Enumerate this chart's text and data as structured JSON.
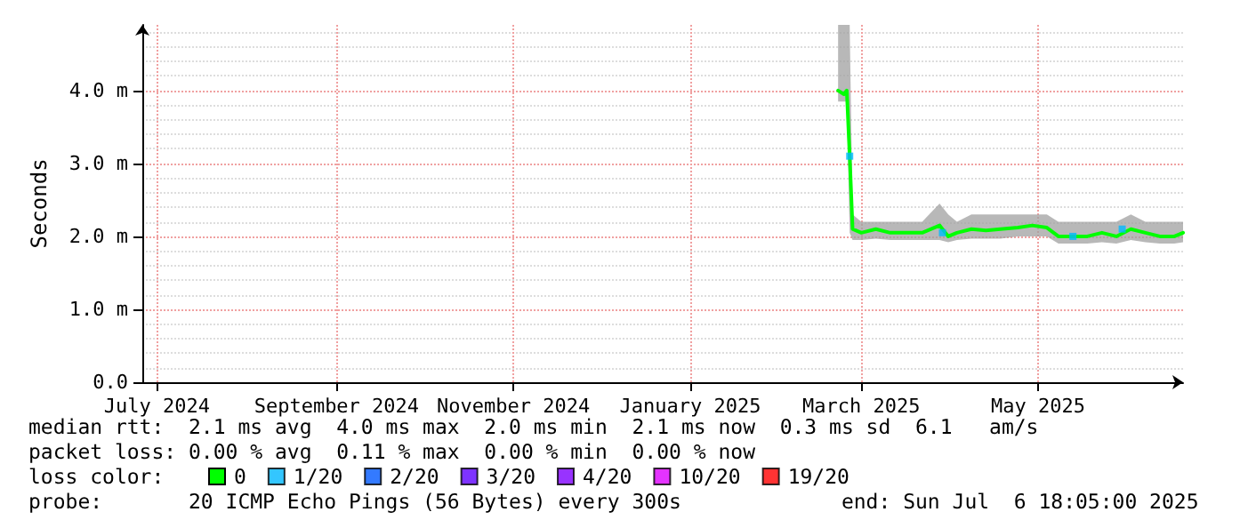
{
  "chart_data": {
    "type": "line",
    "ylabel": "Seconds",
    "legend_title": "loss color:",
    "legend": "bottom",
    "grid": true,
    "marker": "none",
    "xlim": [
      "2024-07-10",
      "2025-07-04"
    ],
    "xticks": [
      {
        "value": "2024-07-15",
        "label": "July 2024"
      },
      {
        "value": "2024-09-15",
        "label": "September 2024"
      },
      {
        "value": "2024-11-15",
        "label": "November 2024"
      },
      {
        "value": "2025-01-15",
        "label": "January 2025"
      },
      {
        "value": "2025-03-15",
        "label": "March 2025"
      },
      {
        "value": "2025-05-15",
        "label": "May 2025"
      }
    ],
    "ylim": [
      0,
      4.9
    ],
    "yticks": [
      {
        "value": 0,
        "label": "0.0"
      },
      {
        "value": 1,
        "label": "1.0 m"
      },
      {
        "value": 2,
        "label": "2.0 m"
      },
      {
        "value": 3,
        "label": "3.0 m"
      },
      {
        "value": 4,
        "label": "4.0 m"
      }
    ],
    "x": [
      "2025-03-07",
      "2025-03-09",
      "2025-03-10",
      "2025-03-11",
      "2025-03-12",
      "2025-03-15",
      "2025-03-20",
      "2025-03-25",
      "2025-04-01",
      "2025-04-05",
      "2025-04-11",
      "2025-04-14",
      "2025-04-17",
      "2025-04-22",
      "2025-04-27",
      "2025-05-02",
      "2025-05-08",
      "2025-05-13",
      "2025-05-18",
      "2025-05-22",
      "2025-05-27",
      "2025-06-01",
      "2025-06-06",
      "2025-06-11",
      "2025-06-16",
      "2025-06-21",
      "2025-06-26",
      "2025-07-01",
      "2025-07-04"
    ],
    "series": [
      {
        "name": "0",
        "color": "#00ff00",
        "values": [
          4.0,
          3.95,
          4.0,
          3.1,
          2.1,
          2.05,
          2.1,
          2.05,
          2.05,
          2.05,
          2.15,
          2.0,
          2.05,
          2.1,
          2.08,
          2.1,
          2.12,
          2.15,
          2.12,
          2.0,
          2.0,
          2.0,
          2.05,
          2.0,
          2.1,
          2.05,
          2.0,
          2.0,
          2.05
        ],
        "lower": [
          3.85,
          3.85,
          3.85,
          2.05,
          1.95,
          1.95,
          1.97,
          1.95,
          1.95,
          1.95,
          1.95,
          1.92,
          1.95,
          1.97,
          1.97,
          1.97,
          2.0,
          2.0,
          2.0,
          1.9,
          1.9,
          1.9,
          1.92,
          1.9,
          1.95,
          1.92,
          1.9,
          1.9,
          1.92
        ],
        "upper": [
          4.9,
          4.9,
          4.9,
          4.9,
          2.3,
          2.2,
          2.2,
          2.2,
          2.2,
          2.2,
          2.45,
          2.3,
          2.2,
          2.3,
          2.3,
          2.3,
          2.3,
          2.3,
          2.3,
          2.2,
          2.2,
          2.2,
          2.2,
          2.2,
          2.3,
          2.2,
          2.2,
          2.2,
          2.2
        ]
      },
      {
        "name": "1/20",
        "color": "#00b8ff",
        "type": "scatter",
        "marker": "square",
        "x": [
          "2025-03-11",
          "2025-04-12",
          "2025-05-27",
          "2025-06-13"
        ],
        "values": [
          3.1,
          2.05,
          2.0,
          2.1
        ]
      },
      {
        "name": "2/20",
        "color": "#0059ff",
        "type": "scatter",
        "values": [
          null,
          null,
          null,
          null,
          null,
          null,
          null,
          null,
          null,
          null,
          null,
          null,
          null,
          null,
          null,
          null,
          null,
          null,
          null,
          null,
          null,
          null,
          null,
          null,
          null,
          null,
          null,
          null,
          null
        ]
      },
      {
        "name": "3/20",
        "color": "#5e00ff",
        "type": "scatter",
        "values": [
          null,
          null,
          null,
          null,
          null,
          null,
          null,
          null,
          null,
          null,
          null,
          null,
          null,
          null,
          null,
          null,
          null,
          null,
          null,
          null,
          null,
          null,
          null,
          null,
          null,
          null,
          null,
          null,
          null
        ]
      },
      {
        "name": "4/20",
        "color": "#7e00ff",
        "type": "scatter",
        "values": [
          null,
          null,
          null,
          null,
          null,
          null,
          null,
          null,
          null,
          null,
          null,
          null,
          null,
          null,
          null,
          null,
          null,
          null,
          null,
          null,
          null,
          null,
          null,
          null,
          null,
          null,
          null,
          null,
          null
        ]
      },
      {
        "name": "10/20",
        "color": "#dd00ff",
        "type": "scatter",
        "values": [
          null,
          null,
          null,
          null,
          null,
          null,
          null,
          null,
          null,
          null,
          null,
          null,
          null,
          null,
          null,
          null,
          null,
          null,
          null,
          null,
          null,
          null,
          null,
          null,
          null,
          null,
          null,
          null,
          null
        ]
      },
      {
        "name": "19/20",
        "color": "#ff0000",
        "type": "scatter",
        "values": [
          null,
          null,
          null,
          null,
          null,
          null,
          null,
          null,
          null,
          null,
          null,
          null,
          null,
          null,
          null,
          null,
          null,
          null,
          null,
          null,
          null,
          null,
          null,
          null,
          null,
          null,
          null,
          null,
          null
        ]
      }
    ],
    "annotations": [
      "median rtt:  2.1 ms avg  4.0 ms max  2.0 ms min  2.1 ms now  0.3 ms sd  6.1   am/s",
      "packet loss: 0.00 % avg  0.11 % max  0.00 % min  0.00 % now",
      "probe:       20 ICMP Echo Pings (56 Bytes) every 300s             end: Sun Jul  6 18:05:00 2025"
    ]
  }
}
